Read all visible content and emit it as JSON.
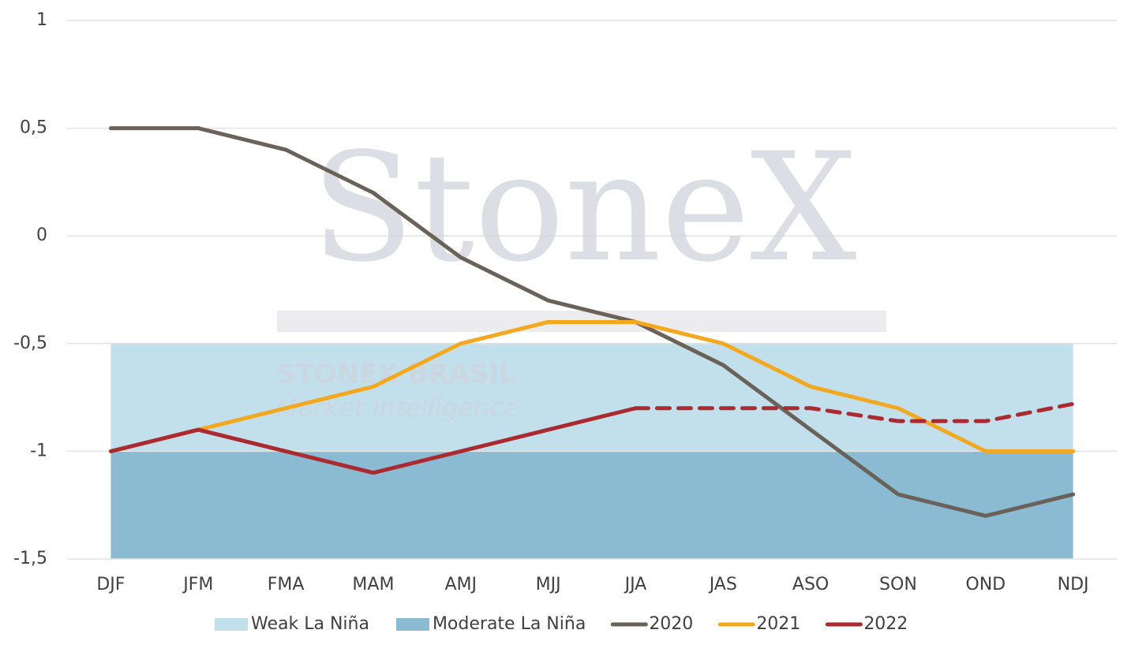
{
  "chart_data": {
    "type": "line",
    "categories": [
      "DJF",
      "JFM",
      "FMA",
      "MAM",
      "AMJ",
      "MJJ",
      "JJA",
      "JAS",
      "ASO",
      "SON",
      "OND",
      "NDJ"
    ],
    "ylim": [
      -1.5,
      1
    ],
    "yticks": [
      1,
      {
        "value": 0.5,
        "label": "0,5"
      },
      0,
      {
        "value": -0.5,
        "label": "-0,5"
      },
      -1,
      {
        "value": -1.5,
        "label": "-1,5"
      }
    ],
    "grid": true,
    "legend": "bottom",
    "bands": [
      {
        "name": "Weak La Niña",
        "color": "#c2dfec",
        "range": [
          -0.5,
          -1
        ]
      },
      {
        "name": "Moderate La Niña",
        "color": "#8bbbd3",
        "range": [
          -1,
          -1.5
        ]
      }
    ],
    "series": [
      {
        "name": "2020",
        "color": "#6a6159",
        "values": [
          0.5,
          0.5,
          0.4,
          0.2,
          -0.1,
          -0.3,
          -0.4,
          -0.6,
          -0.9,
          -1.2,
          -1.3,
          -1.2
        ]
      },
      {
        "name": "2021",
        "color": "#f4a81d",
        "values": [
          -1,
          -0.9,
          -0.8,
          -0.7,
          -0.5,
          -0.4,
          -0.4,
          -0.5,
          -0.7,
          -0.8,
          -1,
          -1
        ]
      },
      {
        "name": "2022",
        "color": "#ab2a30",
        "values": [
          -1,
          -0.9,
          -1,
          -1.1,
          -1,
          -0.9,
          -0.8,
          null,
          null,
          null,
          null,
          null
        ],
        "projected_values": [
          null,
          null,
          null,
          null,
          null,
          null,
          -0.8,
          -0.8,
          -0.8,
          -0.86,
          -0.86,
          -0.78
        ]
      }
    ],
    "watermark": [
      "StoneX",
      "STONEX BRASIL",
      "Market Intelligence"
    ]
  }
}
